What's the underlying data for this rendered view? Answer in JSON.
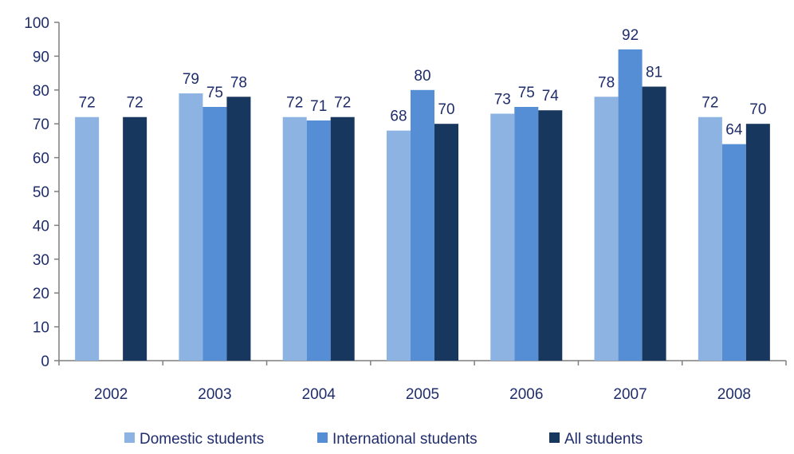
{
  "chart_data": {
    "type": "bar",
    "title": "",
    "xlabel": "",
    "ylabel": "",
    "categories": [
      "2002",
      "2003",
      "2004",
      "2005",
      "2006",
      "2007",
      "2008"
    ],
    "ylim": [
      0,
      100
    ],
    "yticks": [
      0,
      10,
      20,
      30,
      40,
      50,
      60,
      70,
      80,
      90,
      100
    ],
    "grid": false,
    "legend_position": "bottom",
    "series": [
      {
        "name": "Domestic students",
        "color": "#8db3e2",
        "values": [
          72,
          79,
          72,
          68,
          73,
          78,
          72
        ]
      },
      {
        "name": "International students",
        "color": "#558ed5",
        "values": [
          null,
          75,
          71,
          80,
          75,
          92,
          64
        ]
      },
      {
        "name": "All students",
        "color": "#17375e",
        "values": [
          72,
          78,
          72,
          70,
          74,
          81,
          70
        ]
      }
    ],
    "axis_color": "#7f7f7f",
    "label_color": "#1f2d6b"
  }
}
